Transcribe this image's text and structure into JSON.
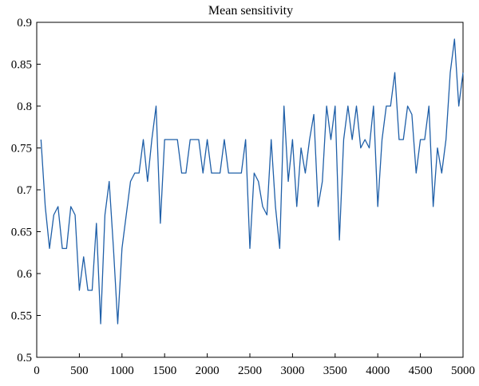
{
  "chart_data": {
    "type": "line",
    "title": "Mean sensitivity",
    "xlabel": "",
    "ylabel": "",
    "xlim": [
      0,
      5000
    ],
    "ylim": [
      0.5,
      0.9
    ],
    "grid": false,
    "x_ticks": [
      0,
      500,
      1000,
      1500,
      2000,
      2500,
      3000,
      3500,
      4000,
      4500,
      5000
    ],
    "y_ticks": [
      0.5,
      0.55,
      0.6,
      0.65,
      0.7,
      0.75,
      0.8,
      0.85,
      0.9
    ],
    "series": [
      {
        "color": "#1f5fa8",
        "x": [
          50,
          100,
          150,
          200,
          250,
          300,
          350,
          400,
          450,
          500,
          550,
          600,
          650,
          700,
          750,
          800,
          850,
          900,
          950,
          1000,
          1050,
          1100,
          1150,
          1200,
          1250,
          1300,
          1350,
          1400,
          1450,
          1500,
          1550,
          1600,
          1650,
          1700,
          1750,
          1800,
          1850,
          1900,
          1950,
          2000,
          2050,
          2100,
          2150,
          2200,
          2250,
          2300,
          2350,
          2400,
          2450,
          2500,
          2550,
          2600,
          2650,
          2700,
          2750,
          2800,
          2850,
          2900,
          2950,
          3000,
          3050,
          3100,
          3150,
          3200,
          3250,
          3300,
          3350,
          3400,
          3450,
          3500,
          3550,
          3600,
          3650,
          3700,
          3750,
          3800,
          3850,
          3900,
          3950,
          4000,
          4050,
          4100,
          4150,
          4200,
          4250,
          4300,
          4350,
          4400,
          4450,
          4500,
          4550,
          4600,
          4650,
          4700,
          4750,
          4800,
          4850,
          4900,
          4950,
          5000
        ],
        "values": [
          0.76,
          0.68,
          0.63,
          0.67,
          0.68,
          0.63,
          0.63,
          0.68,
          0.67,
          0.58,
          0.62,
          0.58,
          0.58,
          0.66,
          0.54,
          0.67,
          0.71,
          0.63,
          0.54,
          0.63,
          0.67,
          0.71,
          0.72,
          0.72,
          0.76,
          0.71,
          0.76,
          0.8,
          0.66,
          0.76,
          0.76,
          0.76,
          0.76,
          0.72,
          0.72,
          0.76,
          0.76,
          0.76,
          0.72,
          0.76,
          0.72,
          0.72,
          0.72,
          0.76,
          0.72,
          0.72,
          0.72,
          0.72,
          0.76,
          0.63,
          0.72,
          0.71,
          0.68,
          0.67,
          0.76,
          0.68,
          0.63,
          0.8,
          0.71,
          0.76,
          0.68,
          0.75,
          0.72,
          0.76,
          0.79,
          0.68,
          0.71,
          0.8,
          0.76,
          0.8,
          0.64,
          0.76,
          0.8,
          0.76,
          0.8,
          0.75,
          0.76,
          0.75,
          0.8,
          0.68,
          0.76,
          0.8,
          0.8,
          0.84,
          0.76,
          0.76,
          0.8,
          0.79,
          0.72,
          0.76,
          0.76,
          0.8,
          0.68,
          0.75,
          0.72,
          0.76,
          0.84,
          0.88,
          0.8,
          0.84
        ]
      }
    ]
  }
}
